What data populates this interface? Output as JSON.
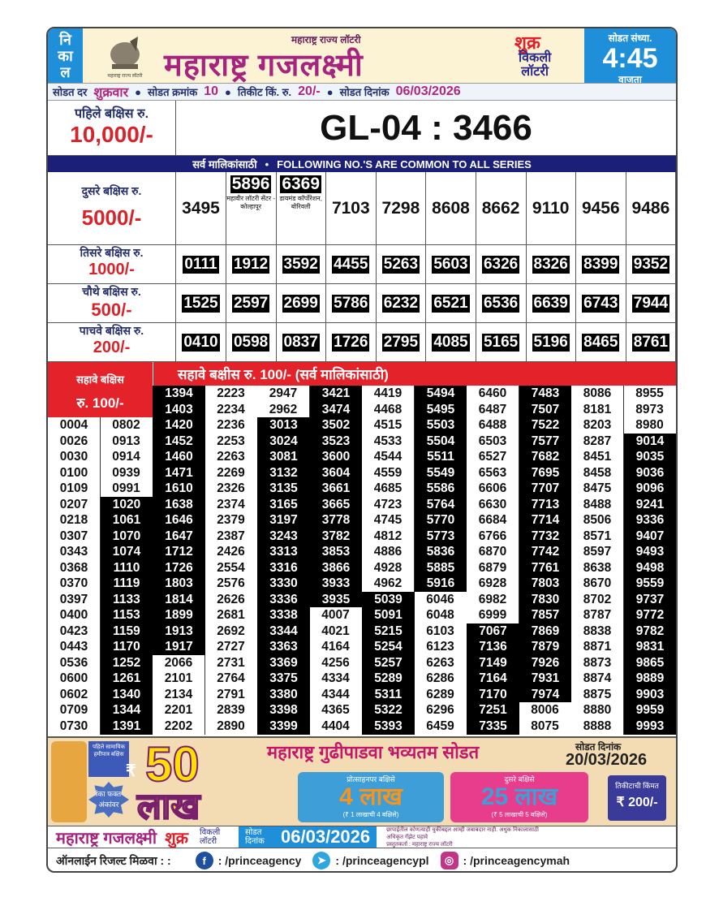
{
  "header": {
    "result_label": [
      "नि",
      "का",
      "ल"
    ],
    "logo_caption": "महाराष्ट्र राज्य लॉटरी",
    "subtitle": "महाराष्ट्र राज्य लॉटरी",
    "title": "महाराष्ट्र गजलक्ष्मी",
    "day": "शुक्र",
    "type_line1": "विकली",
    "type_line2": "लॉटरी",
    "draw_time_label": "सोडत संध्या.",
    "draw_time": "4:45",
    "draw_time_suffix": "वाजता"
  },
  "info": {
    "draw_day_label": "सोडत दर",
    "draw_day": "शुक्रवार",
    "draw_no_label": "सोडत क्रमांक",
    "draw_no": "10",
    "ticket_price_label": "तिकीट किं. रु.",
    "ticket_price": "20/-",
    "draw_date_label": "सोडत दिनांक",
    "draw_date": "06/03/2026"
  },
  "first_prize": {
    "label": "पहिले बक्षिस रु.",
    "amount": "10,000/-",
    "number": "GL-04 : 3466"
  },
  "common_bar": {
    "left": "सर्व मालिकांसाठी",
    "right": "FOLLOWING NO.'S ARE COMMON TO ALL SERIES"
  },
  "second_prize": {
    "label": "दुसरे बक्षिस रु.",
    "amount": "5000/-",
    "numbers": [
      {
        "number": "3495",
        "highlight": false
      },
      {
        "number": "5896",
        "highlight": true,
        "note": "महावीर लॉटरी सेंटर - कोल्हापूर"
      },
      {
        "number": "6369",
        "highlight": true,
        "note": "डायमंड कॉर्पोरेशन, बोरिवली"
      },
      {
        "number": "7103",
        "highlight": false
      },
      {
        "number": "7298",
        "highlight": false
      },
      {
        "number": "8608",
        "highlight": false
      },
      {
        "number": "8662",
        "highlight": false
      },
      {
        "number": "9110",
        "highlight": false
      },
      {
        "number": "9456",
        "highlight": false
      },
      {
        "number": "9486",
        "highlight": false
      }
    ]
  },
  "third_prize": {
    "label": "तिसरे बक्षिस रु.",
    "amount": "1000/-",
    "numbers": [
      "0111",
      "1912",
      "3592",
      "4455",
      "5263",
      "5603",
      "6326",
      "8326",
      "8399",
      "9352"
    ]
  },
  "fourth_prize": {
    "label": "चौथे बक्षिस रु.",
    "amount": "500/-",
    "numbers": [
      "1525",
      "2597",
      "2699",
      "5786",
      "6232",
      "6521",
      "6536",
      "6639",
      "6743",
      "7944"
    ]
  },
  "fifth_prize": {
    "label": "पाचवे बक्षिस रु.",
    "amount": "200/-",
    "numbers": [
      "0410",
      "0598",
      "0837",
      "1726",
      "2795",
      "4085",
      "5165",
      "5196",
      "8465",
      "8761"
    ]
  },
  "sixth_prize": {
    "box_label": "सहावे बक्षिस",
    "box_amount": "रु. 100/-",
    "banner": "सहावे बक्षीस रु. 100/-  (सर्व मालिकांसाठी)",
    "columns": [
      [
        {
          "style": "white",
          "numbers": [
            "0004",
            "0026",
            "0030",
            "0100",
            "0109",
            "0207",
            "0218",
            "0307",
            "0343",
            "0368",
            "0370",
            "0397",
            "0400",
            "0423",
            "0443",
            "0536",
            "0600",
            "0602",
            "0709",
            "0730"
          ]
        }
      ],
      [
        {
          "style": "white",
          "numbers": [
            "0802",
            "0913",
            "0914",
            "0939",
            "0991"
          ]
        },
        {
          "style": "black",
          "numbers": [
            "1020",
            "1061",
            "1070",
            "1074",
            "1110",
            "1119",
            "1133",
            "1153",
            "1159",
            "1170",
            "1252",
            "1261",
            "1340",
            "1344",
            "1391"
          ]
        }
      ],
      [
        {
          "style": "black",
          "numbers": [
            "1394",
            "1403",
            "1420",
            "1452",
            "1460",
            "1471",
            "1610",
            "1638",
            "1646",
            "1647",
            "1712",
            "1726",
            "1803",
            "1814",
            "1899",
            "1913",
            "1917"
          ]
        },
        {
          "style": "white",
          "numbers": [
            "2066",
            "2101",
            "2134",
            "2201",
            "2202"
          ]
        }
      ],
      [
        {
          "style": "white",
          "numbers": [
            "2223",
            "2234",
            "2236",
            "2253",
            "2263",
            "2269",
            "2326",
            "2374",
            "2379",
            "2387",
            "2426",
            "2554",
            "2576",
            "2626",
            "2681",
            "2692",
            "2727",
            "2731",
            "2764",
            "2791",
            "2839",
            "2890"
          ]
        }
      ],
      [
        {
          "style": "white",
          "numbers": [
            "2947",
            "2962"
          ]
        },
        {
          "style": "black",
          "numbers": [
            "3013",
            "3024",
            "3081",
            "3132",
            "3135",
            "3165",
            "3197",
            "3243",
            "3313",
            "3316",
            "3330",
            "3336",
            "3338",
            "3344",
            "3363",
            "3369",
            "3375",
            "3380",
            "3398",
            "3399"
          ]
        }
      ],
      [
        {
          "style": "black",
          "numbers": [
            "3421",
            "3474",
            "3502",
            "3523",
            "3600",
            "3604",
            "3661",
            "3665",
            "3778",
            "3782",
            "3853",
            "3866",
            "3933",
            "3935"
          ]
        },
        {
          "style": "white",
          "numbers": [
            "4007",
            "4021",
            "4164",
            "4256",
            "4334",
            "4344",
            "4365",
            "4404"
          ]
        }
      ],
      [
        {
          "style": "white",
          "numbers": [
            "4419",
            "4468",
            "4515",
            "4533",
            "4544",
            "4559",
            "4685",
            "4723",
            "4745",
            "4812",
            "4886",
            "4928",
            "4962"
          ]
        },
        {
          "style": "black",
          "numbers": [
            "5039",
            "5091",
            "5215",
            "5254",
            "5257",
            "5289",
            "5311",
            "5322",
            "5393"
          ]
        }
      ],
      [
        {
          "style": "black",
          "numbers": [
            "5494",
            "5495",
            "5503",
            "5504",
            "5511",
            "5549",
            "5586",
            "5764",
            "5770",
            "5773",
            "5836",
            "5885",
            "5916"
          ]
        },
        {
          "style": "white",
          "numbers": [
            "6046",
            "6048",
            "6103",
            "6123",
            "6263",
            "6286",
            "6289",
            "6296",
            "6459"
          ]
        }
      ],
      [
        {
          "style": "white",
          "numbers": [
            "6460",
            "6487",
            "6488",
            "6503",
            "6527",
            "6563",
            "6606",
            "6630",
            "6684",
            "6766",
            "6870",
            "6879",
            "6928",
            "6982",
            "6999"
          ]
        },
        {
          "style": "black",
          "numbers": [
            "7067",
            "7136",
            "7149",
            "7164",
            "7170",
            "7251",
            "7335"
          ]
        }
      ],
      [
        {
          "style": "black",
          "numbers": [
            "7483",
            "7507",
            "7522",
            "7577",
            "7682",
            "7695",
            "7707",
            "7713",
            "7714",
            "7732",
            "7742",
            "7761",
            "7803",
            "7830",
            "7857",
            "7869",
            "7879",
            "7926",
            "7931",
            "7974"
          ]
        },
        {
          "style": "white",
          "numbers": [
            "8006",
            "8075"
          ]
        }
      ],
      [
        {
          "style": "white",
          "numbers": [
            "8086",
            "8181",
            "8203",
            "8287",
            "8451",
            "8458",
            "8475",
            "8488",
            "8506",
            "8571",
            "8597",
            "8638",
            "8670",
            "8702",
            "8787",
            "8838",
            "8871",
            "8873",
            "8874",
            "8875",
            "8880",
            "8888"
          ]
        }
      ],
      [
        {
          "style": "white",
          "numbers": [
            "8955",
            "8973",
            "8980"
          ]
        },
        {
          "style": "black",
          "numbers": [
            "9014",
            "9035",
            "9036",
            "9096",
            "9241",
            "9336",
            "9407",
            "9493",
            "9498",
            "9559",
            "9737",
            "9772",
            "9782",
            "9831",
            "9865",
            "9889",
            "9903",
            "9959",
            "9993"
          ]
        }
      ]
    ]
  },
  "promo": {
    "first_prize_tag": "पहिले सामायिक हमीपात्र बक्षिस",
    "currency": "₹",
    "big_amount": "50",
    "big_unit": "लाख",
    "badge": "जिंका फक्त 5 अंकांवर",
    "headline": "महाराष्ट्र गुढीपाडवा भव्यतम सोडत",
    "draw_date_label": "सोडत दिनांक",
    "draw_date": "20/03/2026",
    "incentive_title": "प्रोत्साहनपर बक्षिसे",
    "incentive_amount": "4",
    "incentive_unit": "लाख",
    "incentive_note": "(₹ 1 लाखाची 4 बक्षिसे)",
    "second_title": "दुसरे बक्षिसे",
    "second_amount": "25",
    "second_unit": "लाख",
    "second_note": "(₹ 5 लाखाची 5 बक्षिसे)",
    "price_label": "तिकीटाची किंमत",
    "price": "₹ 200/-"
  },
  "bottom_bar": {
    "title": "महाराष्ट्र गजलक्ष्मी",
    "day": "शुक्र",
    "type": "विकली लॉटरी",
    "date_label": "सोडत दिनांक",
    "date": "06/03/2026",
    "disclaimer": "छापाईतील कोणत्याही चुकीबद्दल आम्ही जबाबदार नाही. अधुक निकालासाठी अधिकृत गॅझेट पहावे",
    "presenter": "प्रस्तुतकर्ता : महाराष्ट्र राज्य लॉटरी"
  },
  "footer": {
    "label": "ऑनलाईन रिजल्ट मिळवा : :",
    "facebook": ": /princeagency",
    "telegram": ": /princeagencypl",
    "instagram": ": /princeagencymah"
  },
  "colors": {
    "title": "#a6237f",
    "accent_red": "#e3222a",
    "blue": "#1e8fd8",
    "navy": "#1b1f78"
  }
}
